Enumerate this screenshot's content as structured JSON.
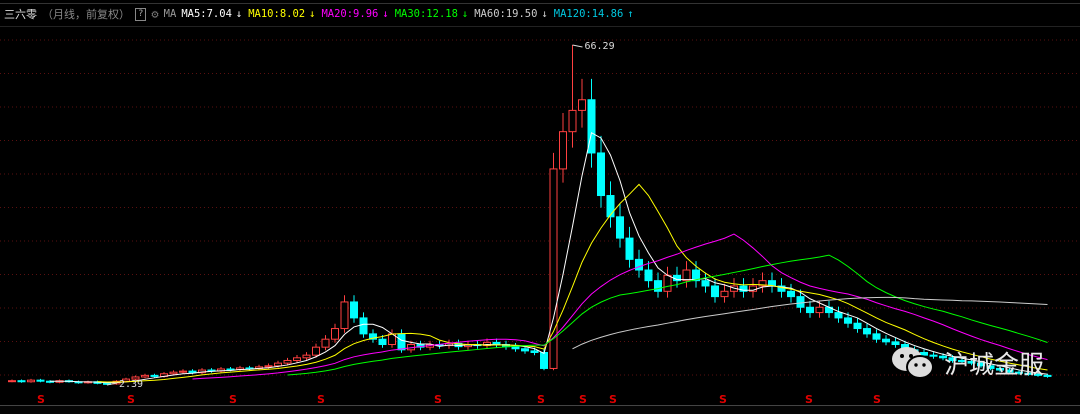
{
  "header": {
    "stock_name": "三六零",
    "mode": "（月线，前复权）",
    "help": "?",
    "ma_label": "MA",
    "indicators": [
      {
        "label": "MA5:7.04",
        "arrow": "↓",
        "color": "#ffffff"
      },
      {
        "label": "MA10:8.02",
        "arrow": "↓",
        "color": "#ffff00"
      },
      {
        "label": "MA20:9.96",
        "arrow": "↓",
        "color": "#ff00ff"
      },
      {
        "label": "MA30:12.18",
        "arrow": "↓",
        "color": "#00ff00"
      },
      {
        "label": "MA60:19.50",
        "arrow": "↓",
        "color": "#cccccc"
      },
      {
        "label": "MA120:14.86",
        "arrow": "↑",
        "color": "#00c8e0"
      }
    ]
  },
  "chart_data": {
    "type": "candlestick",
    "period": "monthly",
    "closes": [
      3.2,
      3.0,
      3.3,
      3.1,
      2.9,
      3.2,
      3.0,
      2.8,
      3.0,
      2.7,
      2.6,
      3.1,
      3.5,
      3.9,
      4.2,
      4.0,
      4.5,
      4.8,
      5.0,
      4.7,
      5.2,
      5.0,
      5.4,
      5.3,
      5.6,
      5.5,
      5.8,
      6.0,
      6.5,
      7.0,
      7.5,
      8.0,
      9.5,
      11,
      13,
      18,
      15,
      12,
      11,
      10,
      12,
      9,
      10,
      9.5,
      10,
      9.8,
      10.2,
      9.6,
      10,
      9.8,
      10.4,
      10,
      9.6,
      9.2,
      8.8,
      8.5,
      5.5,
      43,
      50,
      54,
      56,
      46,
      38,
      34,
      30,
      26,
      24,
      22,
      20,
      23,
      22,
      24,
      22,
      21,
      19,
      20,
      21,
      20,
      21,
      22,
      21,
      20,
      19,
      17,
      16,
      17,
      16,
      15,
      14,
      13,
      12,
      11,
      10.5,
      10,
      9,
      8.5,
      8,
      7.8,
      7.5,
      7,
      6.8,
      6.5,
      6,
      5.5,
      5.2,
      4.8,
      4.6,
      4.4,
      4.2,
      4.0
    ],
    "max_label": "66.29",
    "min_label": "2.39",
    "up_color": "#ff4040",
    "down_color": "#00ffff",
    "signal_label": "S",
    "signal_color": "#e00000"
  },
  "watermark": {
    "text": "沪城金服",
    "icon": "wechat-icon"
  }
}
